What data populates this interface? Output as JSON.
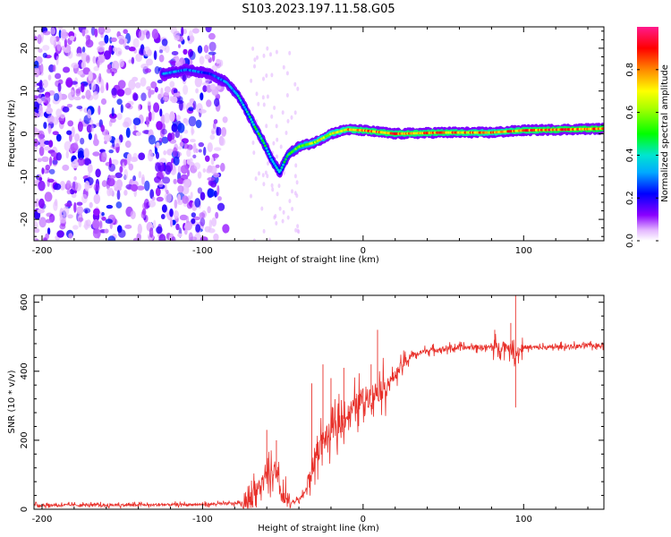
{
  "title": "S103.2023.197.11.58.G05",
  "chart_data": [
    {
      "type": "heatmap",
      "xlabel": "Height of straight line (km)",
      "ylabel": "Frequency (Hz)",
      "xlim": [
        -205,
        150
      ],
      "ylim": [
        -25,
        25
      ],
      "xticks": [
        -200,
        -100,
        0,
        100
      ],
      "yticks": [
        -20,
        -10,
        0,
        10,
        20
      ],
      "colorbar": {
        "label": "Normalized spectral amplitude",
        "range": [
          0.0,
          1.0
        ],
        "ticks": [
          0.0,
          0.2,
          0.4,
          0.6,
          0.8
        ],
        "colors": [
          "#ffffff",
          "#e3b6ff",
          "#8a00ff",
          "#0000ff",
          "#00aaff",
          "#00e5d0",
          "#00ff00",
          "#ffff00",
          "#ff8800",
          "#ff0000",
          "#ff1a8c"
        ]
      },
      "ridge": {
        "x": [
          -125,
          -110,
          -95,
          -85,
          -78,
          -72,
          -68,
          -62,
          -57,
          -52,
          -47,
          -40,
          -30,
          -20,
          -10,
          0,
          20,
          50,
          80,
          100,
          150
        ],
        "freq": [
          14,
          15,
          14,
          12,
          9,
          5,
          2,
          -2,
          -6,
          -9,
          -5,
          -3,
          -2,
          0,
          1,
          0.8,
          0,
          0.3,
          0.3,
          0.8,
          1.2
        ],
        "amplitude": [
          0.3,
          0.28,
          0.25,
          0.3,
          0.35,
          0.4,
          0.45,
          0.45,
          0.4,
          0.4,
          0.45,
          0.55,
          0.65,
          0.7,
          0.75,
          0.8,
          0.8,
          0.8,
          0.75,
          0.8,
          0.85
        ]
      },
      "grid": false
    },
    {
      "type": "line",
      "xlabel": "Height of straight line (km)",
      "ylabel": "SNR (10 * v/v)",
      "xlim": [
        -205,
        150
      ],
      "ylim": [
        0,
        620
      ],
      "xticks": [
        -200,
        -100,
        0,
        100
      ],
      "yticks": [
        0,
        200,
        400,
        600
      ],
      "color": "#e8302a",
      "baseline": {
        "x": [
          -205,
          -150,
          -100,
          -75,
          -70,
          -65,
          -60,
          -55,
          -50,
          -45,
          -40,
          -35,
          -30,
          -25,
          -20,
          -15,
          -10,
          -5,
          0,
          5,
          10,
          15,
          20,
          25,
          30,
          40,
          50,
          60,
          70,
          80,
          90,
          95,
          100,
          110,
          120,
          130,
          140,
          150
        ],
        "y": [
          12,
          12,
          14,
          18,
          35,
          60,
          90,
          110,
          30,
          20,
          25,
          60,
          150,
          200,
          220,
          250,
          270,
          300,
          320,
          330,
          345,
          360,
          390,
          420,
          445,
          460,
          465,
          468,
          470,
          470,
          472,
          450,
          470,
          468,
          470,
          472,
          474,
          476
        ]
      },
      "spikes": [
        {
          "x": -60,
          "y": 230
        },
        {
          "x": -54,
          "y": 200
        },
        {
          "x": -32,
          "y": 365
        },
        {
          "x": -25,
          "y": 420
        },
        {
          "x": -20,
          "y": 380
        },
        {
          "x": -12,
          "y": 410
        },
        {
          "x": 5,
          "y": 420
        },
        {
          "x": 9,
          "y": 520
        },
        {
          "x": 82,
          "y": 520
        },
        {
          "x": 92,
          "y": 540
        },
        {
          "x": 95,
          "y": 620
        },
        {
          "x": 95,
          "y": 295
        }
      ],
      "grid": false
    }
  ]
}
